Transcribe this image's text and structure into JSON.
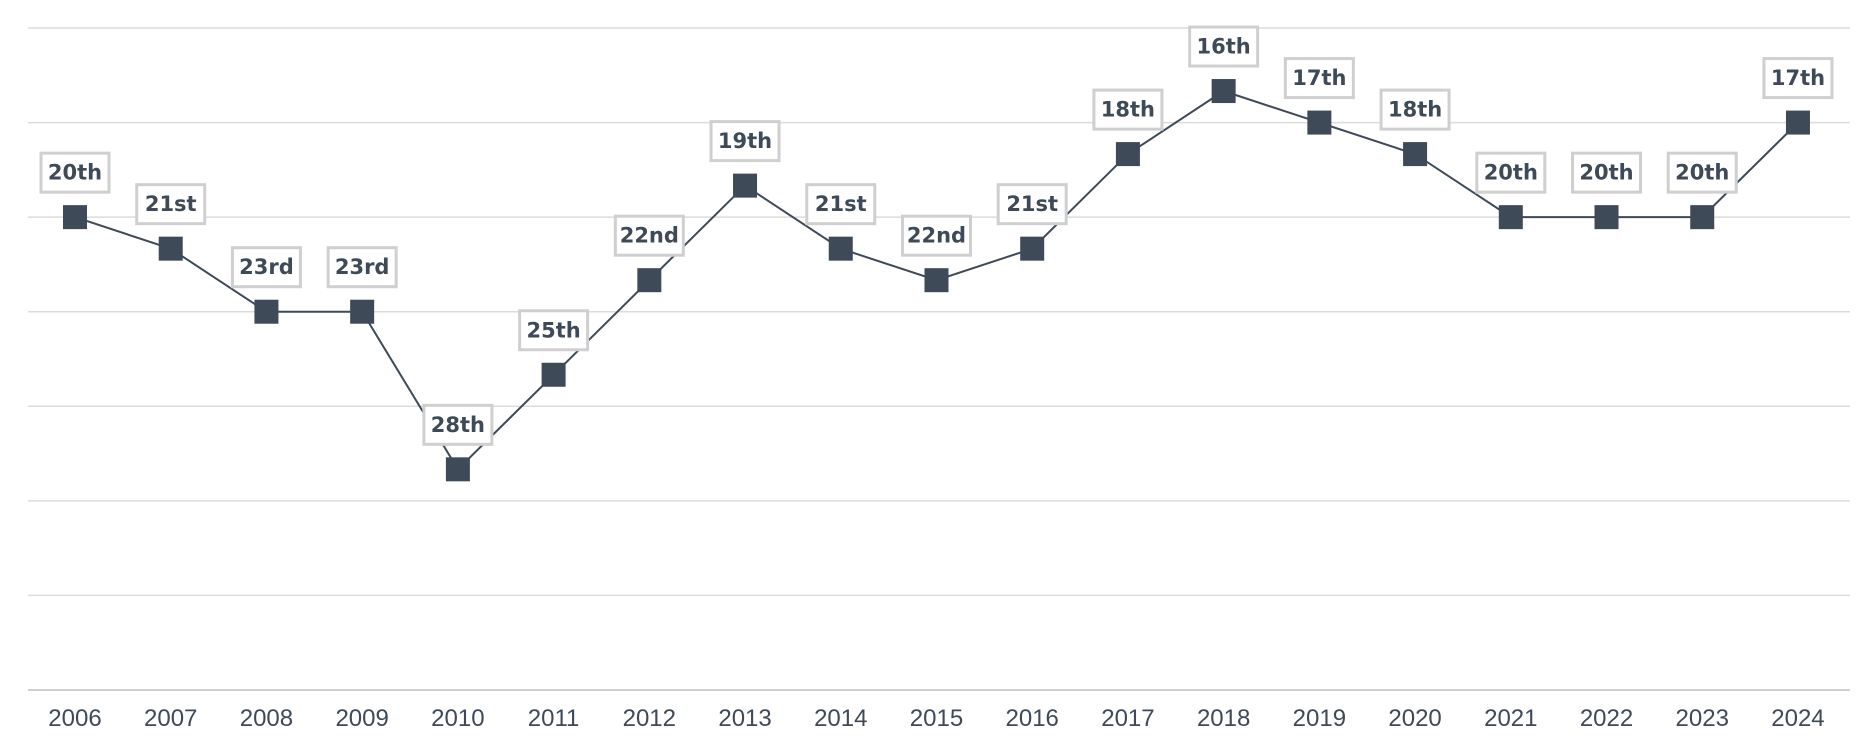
{
  "chart_data": {
    "type": "line",
    "title": "",
    "xlabel": "",
    "ylabel": "",
    "y_axis": "rank",
    "y_inverted": true,
    "ylim": [
      35,
      14
    ],
    "grid": true,
    "categories": [
      "2006",
      "2007",
      "2008",
      "2009",
      "2010",
      "2011",
      "2012",
      "2013",
      "2014",
      "2015",
      "2016",
      "2017",
      "2018",
      "2019",
      "2020",
      "2021",
      "2022",
      "2023",
      "2024"
    ],
    "values": [
      20,
      21,
      23,
      23,
      28,
      25,
      22,
      19,
      21,
      22,
      21,
      18,
      16,
      17,
      18,
      20,
      20,
      20,
      17
    ],
    "data_labels": [
      "20th",
      "21st",
      "23rd",
      "23rd",
      "28th",
      "25th",
      "22nd",
      "19th",
      "21st",
      "22nd",
      "21st",
      "18th",
      "16th",
      "17th",
      "18th",
      "20th",
      "20th",
      "20th",
      "17th"
    ],
    "colors": {
      "series": "#3e4a57",
      "grid": "#dcdcdc",
      "label_border": "#cfcfcf"
    }
  }
}
